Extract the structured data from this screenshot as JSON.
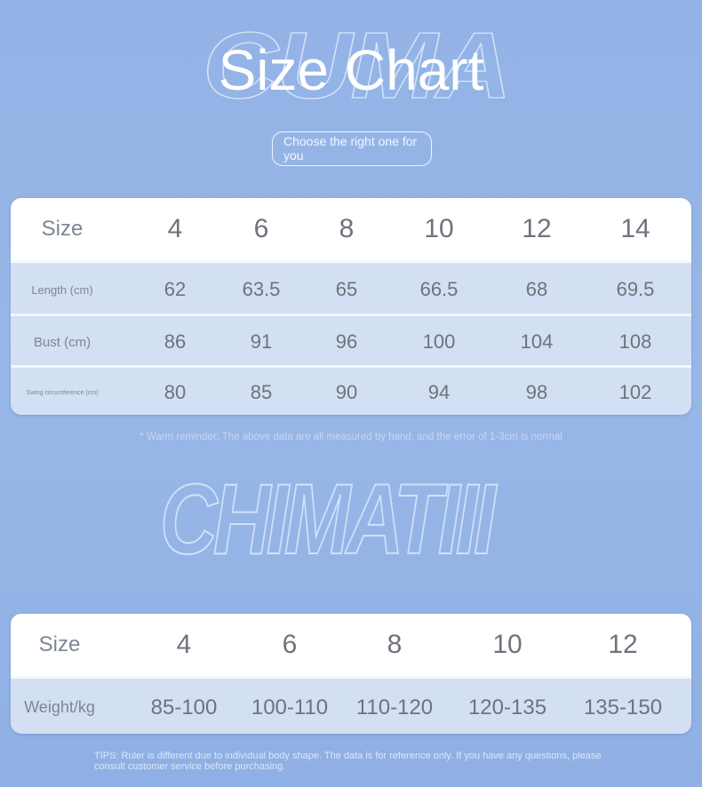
{
  "watermarks": {
    "top": "CUMA",
    "middle": "CHIMATIII"
  },
  "title": "Size Chart",
  "subtitle": "Choose the right one for you",
  "table1": {
    "header": [
      "Size",
      "4",
      "6",
      "8",
      "10",
      "12",
      "14"
    ],
    "rows": [
      {
        "label": "Length (cm)",
        "values": [
          "62",
          "63.5",
          "65",
          "66.5",
          "68",
          "69.5"
        ]
      },
      {
        "label": "Bust (cm)",
        "values": [
          "86",
          "91",
          "96",
          "100",
          "104",
          "108"
        ]
      },
      {
        "label": "Swing circumference (cm)",
        "values": [
          "80",
          "85",
          "90",
          "94",
          "98",
          "102"
        ]
      }
    ]
  },
  "note": "* Warm reminder: The above data are all measured by hand, and the error of 1-3cm is normal",
  "table2": {
    "header": [
      "Size",
      "4",
      "6",
      "8",
      "10",
      "12"
    ],
    "rows": [
      {
        "label": "Weight/kg",
        "values": [
          "85-100",
          "100-110",
          "110-120",
          "120-135",
          "135-150"
        ]
      }
    ]
  },
  "tips": "TIPS: Ruler is different due to individual body shape. The data is for reference only. If you have any questions, please consult customer service before purchasing.",
  "colors": {
    "background": "#93b2e5",
    "header_row": "#ffffff",
    "data_row": "#d3e0f3",
    "text": "#6e737c"
  }
}
